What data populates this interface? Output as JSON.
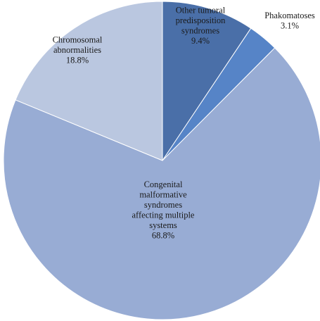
{
  "chart_data": {
    "type": "pie",
    "title": "",
    "slices": [
      {
        "label": "Other tumoral predisposition syndromes",
        "value": 9.4,
        "display": "9.4%",
        "color": "#4a6fa8",
        "label_lines": [
          "Other tumoral",
          "predisposition",
          "syndromes",
          "9.4%"
        ]
      },
      {
        "label": "Phakomatoses",
        "value": 3.1,
        "display": "3.1%",
        "color": "#5684c7",
        "label_lines": [
          "Phakomatoses",
          "3.1%"
        ]
      },
      {
        "label": "Congenital malformative syndromes affecting multiple systems",
        "value": 68.8,
        "display": "68.8%",
        "color": "#98acd4",
        "label_lines": [
          "Congenital",
          "malformative",
          "syndromes",
          "affecting multiple",
          "systems",
          "68.8%"
        ]
      },
      {
        "label": "Chromosomal abnormalities",
        "value": 18.8,
        "display": "18.8%",
        "color": "#bac7e0",
        "label_lines": [
          "Chromosomal",
          "abnormalities",
          "18.8%"
        ]
      }
    ],
    "start_angle": "12 o'clock",
    "direction": "clockwise",
    "legend": "none"
  }
}
